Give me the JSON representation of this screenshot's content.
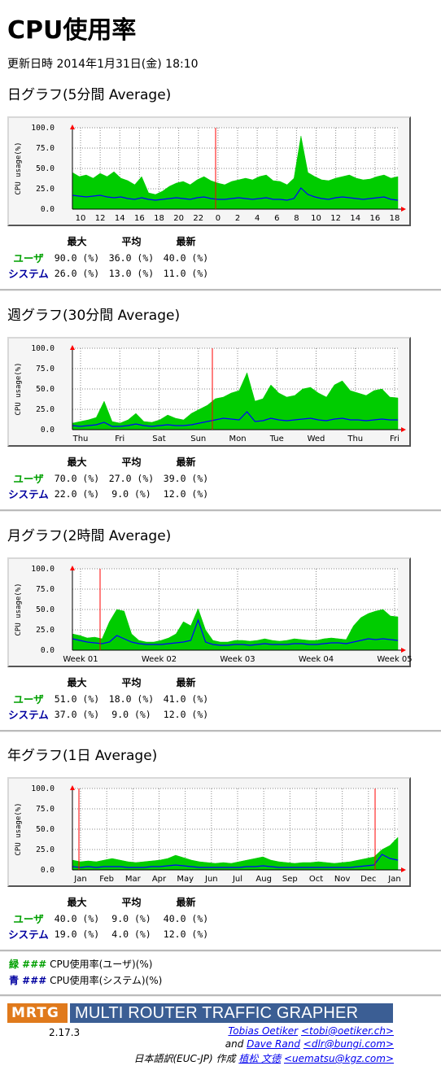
{
  "page": {
    "title": "CPU使用率",
    "updated": "更新日時 2014年1月31日(金) 18:10"
  },
  "graphs": [
    {
      "title": "日グラフ(5分間 Average)",
      "stats": {
        "headers": [
          "最大",
          "平均",
          "最新"
        ],
        "user_label": "ユーザ",
        "user": [
          "90.0 (%)",
          "36.0 (%)",
          "40.0 (%)"
        ],
        "sys_label": "システム",
        "sys": [
          "26.0 (%)",
          "13.0 (%)",
          "11.0 (%)"
        ]
      }
    },
    {
      "title": "週グラフ(30分間 Average)",
      "stats": {
        "headers": [
          "最大",
          "平均",
          "最新"
        ],
        "user_label": "ユーザ",
        "user": [
          "70.0 (%)",
          "27.0 (%)",
          "39.0 (%)"
        ],
        "sys_label": "システム",
        "sys": [
          "22.0 (%)",
          "9.0 (%)",
          "12.0 (%)"
        ]
      }
    },
    {
      "title": "月グラフ(2時間 Average)",
      "stats": {
        "headers": [
          "最大",
          "平均",
          "最新"
        ],
        "user_label": "ユーザ",
        "user": [
          "51.0 (%)",
          "18.0 (%)",
          "41.0 (%)"
        ],
        "sys_label": "システム",
        "sys": [
          "37.0 (%)",
          "9.0 (%)",
          "12.0 (%)"
        ]
      }
    },
    {
      "title": "年グラフ(1日 Average)",
      "stats": {
        "headers": [
          "最大",
          "平均",
          "最新"
        ],
        "user_label": "ユーザ",
        "user": [
          "40.0 (%)",
          "9.0 (%)",
          "40.0 (%)"
        ],
        "sys_label": "システム",
        "sys": [
          "19.0 (%)",
          "4.0 (%)",
          "12.0 (%)"
        ]
      }
    }
  ],
  "legend": {
    "green_label": "緑 ###",
    "green_text": "CPU使用率(ユーザ)(%)",
    "blue_label": "青 ###",
    "blue_text": "CPU使用率(システム)(%)"
  },
  "footer": {
    "logo": "MRTG",
    "name": "MULTI ROUTER TRAFFIC GRAPHER",
    "version": "2.17.3",
    "author1": "Tobias Oetiker",
    "author1_email": "<tobi@oetiker.ch>",
    "and": "and",
    "author2": "Dave Rand",
    "author2_email": "<dlr@bungi.com>",
    "translation": "日本語訳(EUC-JP) 作成",
    "translator": "植松 文徳",
    "translator_email": "<uematsu@kgz.com>"
  },
  "colors": {
    "user": "#00cc00",
    "system": "#0000ff",
    "marker": "#ff0000"
  },
  "chart_data": [
    {
      "type": "area",
      "ylabel": "CPU usage(%)",
      "ylim": [
        0,
        100
      ],
      "yticks": [
        "100.0",
        "75.0",
        "50.0",
        "25.0",
        "0.0"
      ],
      "xticks": [
        "10",
        "12",
        "14",
        "16",
        "18",
        "20",
        "22",
        "0",
        "2",
        "4",
        "6",
        "8",
        "10",
        "12",
        "14",
        "16",
        "18"
      ],
      "series": [
        {
          "values": [
            45,
            40,
            42,
            38,
            44,
            40,
            46,
            38,
            35,
            30,
            40,
            20,
            18,
            22,
            28,
            32,
            34,
            30,
            36,
            40,
            35,
            32,
            30,
            34,
            36,
            38,
            36,
            40,
            42,
            35,
            34,
            30,
            38,
            90,
            45,
            40,
            36,
            35,
            38,
            40,
            42,
            38,
            36,
            37,
            40,
            42,
            38,
            40
          ]
        },
        {
          "values": [
            17,
            16,
            15,
            16,
            17,
            15,
            14,
            15,
            13,
            12,
            14,
            12,
            11,
            12,
            13,
            14,
            13,
            12,
            14,
            15,
            13,
            12,
            12,
            13,
            14,
            13,
            12,
            13,
            14,
            12,
            12,
            11,
            13,
            26,
            18,
            15,
            13,
            12,
            14,
            15,
            14,
            13,
            12,
            13,
            14,
            15,
            12,
            11
          ]
        }
      ],
      "markers": [
        "0"
      ]
    },
    {
      "type": "area",
      "ylabel": "CPU usage(%)",
      "ylim": [
        0,
        100
      ],
      "yticks": [
        "100.0",
        "75.0",
        "50.0",
        "25.0",
        "0.0"
      ],
      "xticks": [
        "Thu",
        "Fri",
        "Sat",
        "Sun",
        "Mon",
        "Tue",
        "Wed",
        "Thu",
        "Fri"
      ],
      "series": [
        {
          "values": [
            8,
            10,
            12,
            15,
            35,
            10,
            8,
            12,
            20,
            10,
            9,
            12,
            18,
            14,
            12,
            20,
            25,
            30,
            38,
            40,
            45,
            48,
            70,
            35,
            38,
            55,
            45,
            40,
            42,
            50,
            52,
            45,
            40,
            55,
            60,
            48,
            45,
            42,
            48,
            50,
            40,
            39
          ]
        },
        {
          "values": [
            5,
            4,
            5,
            6,
            9,
            4,
            4,
            5,
            7,
            5,
            4,
            5,
            6,
            5,
            5,
            6,
            8,
            10,
            12,
            14,
            13,
            12,
            22,
            10,
            11,
            14,
            12,
            11,
            12,
            13,
            14,
            12,
            11,
            13,
            14,
            12,
            12,
            11,
            12,
            13,
            12,
            12
          ]
        }
      ],
      "markers": [
        "Sun-Mon"
      ]
    },
    {
      "type": "area",
      "ylabel": "CPU usage(%)",
      "ylim": [
        0,
        100
      ],
      "yticks": [
        "100.0",
        "75.0",
        "50.0",
        "25.0",
        "0.0"
      ],
      "xticks": [
        "Week 01",
        "Week 02",
        "Week 03",
        "Week 04",
        "Week 05"
      ],
      "series": [
        {
          "values": [
            20,
            18,
            15,
            16,
            14,
            35,
            50,
            48,
            20,
            12,
            10,
            10,
            12,
            15,
            20,
            35,
            30,
            51,
            25,
            12,
            10,
            10,
            12,
            12,
            11,
            12,
            14,
            12,
            11,
            12,
            14,
            13,
            12,
            12,
            14,
            15,
            14,
            13,
            30,
            40,
            45,
            48,
            50,
            42,
            41
          ]
        },
        {
          "values": [
            14,
            12,
            10,
            9,
            8,
            10,
            18,
            14,
            10,
            8,
            7,
            7,
            7,
            8,
            9,
            10,
            12,
            37,
            10,
            7,
            6,
            6,
            7,
            7,
            6,
            7,
            8,
            7,
            7,
            7,
            8,
            8,
            7,
            7,
            8,
            9,
            9,
            8,
            10,
            12,
            14,
            13,
            14,
            13,
            12
          ]
        }
      ],
      "markers": [
        "Week 00"
      ]
    },
    {
      "type": "area",
      "ylabel": "CPU usage(%)",
      "ylim": [
        0,
        100
      ],
      "yticks": [
        "100.0",
        "75.0",
        "50.0",
        "25.0",
        "0.0"
      ],
      "xticks": [
        "Jan",
        "Feb",
        "Mar",
        "Apr",
        "May",
        "Jun",
        "Jul",
        "Aug",
        "Sep",
        "Oct",
        "Nov",
        "Dec",
        "Jan"
      ],
      "series": [
        {
          "values": [
            12,
            10,
            11,
            10,
            12,
            14,
            12,
            10,
            9,
            10,
            11,
            12,
            14,
            18,
            15,
            12,
            10,
            9,
            8,
            9,
            8,
            10,
            12,
            14,
            16,
            12,
            10,
            9,
            8,
            9,
            9,
            10,
            9,
            8,
            9,
            10,
            12,
            14,
            16,
            25,
            30,
            40
          ]
        },
        {
          "values": [
            4,
            3,
            4,
            3,
            4,
            4,
            4,
            3,
            3,
            3,
            4,
            4,
            5,
            6,
            5,
            4,
            3,
            3,
            3,
            3,
            3,
            3,
            4,
            4,
            5,
            4,
            3,
            3,
            3,
            3,
            3,
            3,
            3,
            3,
            3,
            3,
            4,
            5,
            6,
            19,
            14,
            12
          ]
        }
      ],
      "markers": [
        "Jan",
        "Jan"
      ]
    }
  ]
}
